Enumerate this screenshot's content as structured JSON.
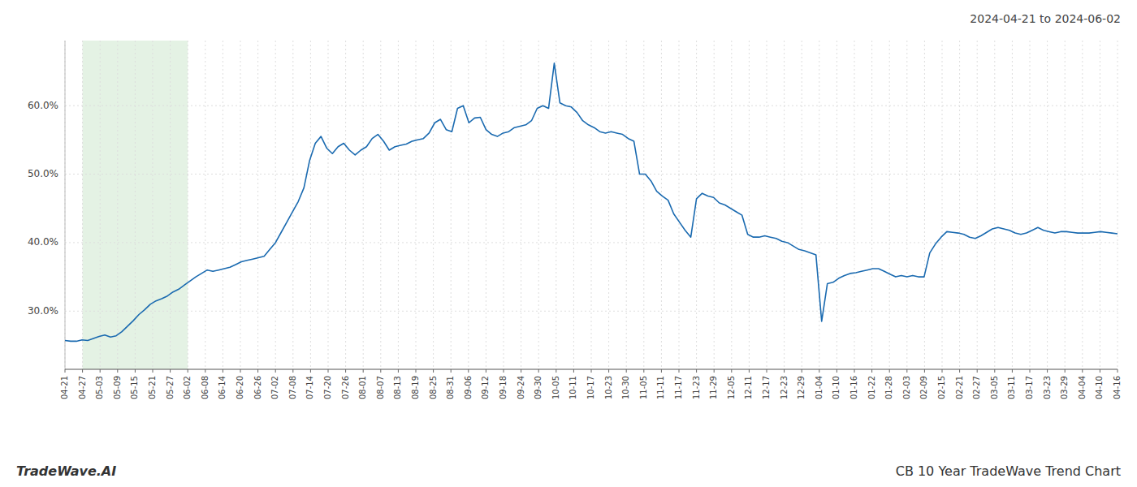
{
  "chart_data": {
    "type": "line",
    "title": "2024-04-21 to 2024-06-02",
    "annotations": [
      "TradeWave.AI",
      "CB 10 Year TradeWave Trend Chart"
    ],
    "color": "#1a6ab0",
    "grid": true,
    "ylim": [
      0.215,
      0.695
    ],
    "yticks": [
      {
        "value": 0.3,
        "label": "30.0%"
      },
      {
        "value": 0.4,
        "label": "40.0%"
      },
      {
        "value": 0.5,
        "label": "50.0%"
      },
      {
        "value": 0.6,
        "label": "60.0%"
      }
    ],
    "xlim": [
      0,
      185
    ],
    "xticks": [
      {
        "value": 0,
        "label": "04-21"
      },
      {
        "value": 3.083333,
        "label": "04-27"
      },
      {
        "value": 6.166667,
        "label": "05-03"
      },
      {
        "value": 9.25,
        "label": "05-09"
      },
      {
        "value": 12.333333,
        "label": "05-15"
      },
      {
        "value": 15.416667,
        "label": "05-21"
      },
      {
        "value": 18.5,
        "label": "05-27"
      },
      {
        "value": 21.583333,
        "label": "06-02"
      },
      {
        "value": 24.666667,
        "label": "06-08"
      },
      {
        "value": 27.75,
        "label": "06-14"
      },
      {
        "value": 30.833333,
        "label": "06-20"
      },
      {
        "value": 33.916667,
        "label": "06-26"
      },
      {
        "value": 37,
        "label": "07-02"
      },
      {
        "value": 40.083333,
        "label": "07-08"
      },
      {
        "value": 43.166667,
        "label": "07-14"
      },
      {
        "value": 46.25,
        "label": "07-20"
      },
      {
        "value": 49.333333,
        "label": "07-26"
      },
      {
        "value": 52.416667,
        "label": "08-01"
      },
      {
        "value": 55.5,
        "label": "08-07"
      },
      {
        "value": 58.583333,
        "label": "08-13"
      },
      {
        "value": 61.666667,
        "label": "08-19"
      },
      {
        "value": 64.75,
        "label": "08-25"
      },
      {
        "value": 67.833333,
        "label": "08-31"
      },
      {
        "value": 70.916667,
        "label": "09-06"
      },
      {
        "value": 74,
        "label": "09-12"
      },
      {
        "value": 77.083333,
        "label": "09-18"
      },
      {
        "value": 80.166667,
        "label": "09-24"
      },
      {
        "value": 83.25,
        "label": "09-30"
      },
      {
        "value": 86.333333,
        "label": "10-05"
      },
      {
        "value": 89.416667,
        "label": "10-11"
      },
      {
        "value": 92.5,
        "label": "10-17"
      },
      {
        "value": 95.583333,
        "label": "10-23"
      },
      {
        "value": 98.666667,
        "label": "10-30"
      },
      {
        "value": 101.75,
        "label": "11-05"
      },
      {
        "value": 104.833333,
        "label": "11-11"
      },
      {
        "value": 107.916667,
        "label": "11-17"
      },
      {
        "value": 111,
        "label": "11-23"
      },
      {
        "value": 114.083333,
        "label": "11-29"
      },
      {
        "value": 117.166667,
        "label": "12-05"
      },
      {
        "value": 120.25,
        "label": "12-11"
      },
      {
        "value": 123.333333,
        "label": "12-17"
      },
      {
        "value": 126.416667,
        "label": "12-23"
      },
      {
        "value": 129.5,
        "label": "12-29"
      },
      {
        "value": 132.583333,
        "label": "01-04"
      },
      {
        "value": 135.666667,
        "label": "01-10"
      },
      {
        "value": 138.75,
        "label": "01-16"
      },
      {
        "value": 141.833333,
        "label": "01-22"
      },
      {
        "value": 144.916667,
        "label": "01-28"
      },
      {
        "value": 148,
        "label": "02-03"
      },
      {
        "value": 151.083333,
        "label": "02-09"
      },
      {
        "value": 154.166667,
        "label": "02-15"
      },
      {
        "value": 157.25,
        "label": "02-21"
      },
      {
        "value": 160.333333,
        "label": "02-27"
      },
      {
        "value": 163.416667,
        "label": "03-05"
      },
      {
        "value": 166.5,
        "label": "03-11"
      },
      {
        "value": 169.583333,
        "label": "03-17"
      },
      {
        "value": 172.666667,
        "label": "03-23"
      },
      {
        "value": 175.75,
        "label": "03-29"
      },
      {
        "value": 178.833333,
        "label": "04-04"
      },
      {
        "value": 181.916667,
        "label": "04-10"
      },
      {
        "value": 185,
        "label": "04-16"
      }
    ],
    "shaded_range": [
      3.083333,
      21.583333
    ],
    "shaded_color": "#d8edd8",
    "values": [
      0.257,
      0.256,
      0.256,
      0.258,
      0.257,
      0.26,
      0.263,
      0.265,
      0.262,
      0.264,
      0.27,
      0.278,
      0.286,
      0.295,
      0.302,
      0.31,
      0.315,
      0.318,
      0.322,
      0.328,
      0.332,
      0.338,
      0.344,
      0.35,
      0.355,
      0.36,
      0.358,
      0.36,
      0.362,
      0.364,
      0.368,
      0.372,
      0.374,
      0.376,
      0.378,
      0.38,
      0.39,
      0.4,
      0.415,
      0.43,
      0.445,
      0.46,
      0.48,
      0.52,
      0.545,
      0.555,
      0.538,
      0.53,
      0.54,
      0.545,
      0.535,
      0.528,
      0.535,
      0.54,
      0.552,
      0.558,
      0.548,
      0.535,
      0.54,
      0.542,
      0.544,
      0.548,
      0.55,
      0.552,
      0.56,
      0.575,
      0.58,
      0.565,
      0.562,
      0.596,
      0.6,
      0.575,
      0.582,
      0.583,
      0.565,
      0.558,
      0.555,
      0.56,
      0.562,
      0.568,
      0.57,
      0.572,
      0.578,
      0.596,
      0.6,
      0.596,
      0.662,
      0.604,
      0.6,
      0.598,
      0.59,
      0.578,
      0.572,
      0.568,
      0.562,
      0.56,
      0.562,
      0.56,
      0.558,
      0.552,
      0.548,
      0.5,
      0.5,
      0.49,
      0.475,
      0.468,
      0.462,
      0.442,
      0.43,
      0.418,
      0.408,
      0.464,
      0.472,
      0.468,
      0.466,
      0.458,
      0.455,
      0.45,
      0.445,
      0.44,
      0.412,
      0.408,
      0.408,
      0.41,
      0.408,
      0.406,
      0.402,
      0.4,
      0.395,
      0.39,
      0.388,
      0.385,
      0.382,
      0.285,
      0.34,
      0.342,
      0.348,
      0.352,
      0.355,
      0.356,
      0.358,
      0.36,
      0.362,
      0.362,
      0.358,
      0.354,
      0.35,
      0.352,
      0.35,
      0.352,
      0.35,
      0.35,
      0.385,
      0.398,
      0.408,
      0.416,
      0.415,
      0.414,
      0.412,
      0.408,
      0.406,
      0.41,
      0.415,
      0.42,
      0.422,
      0.42,
      0.418,
      0.414,
      0.412,
      0.414,
      0.418,
      0.422,
      0.418,
      0.416,
      0.414,
      0.416,
      0.416,
      0.415,
      0.414,
      0.414,
      0.414,
      0.415,
      0.416,
      0.415,
      0.414,
      0.413
    ]
  }
}
